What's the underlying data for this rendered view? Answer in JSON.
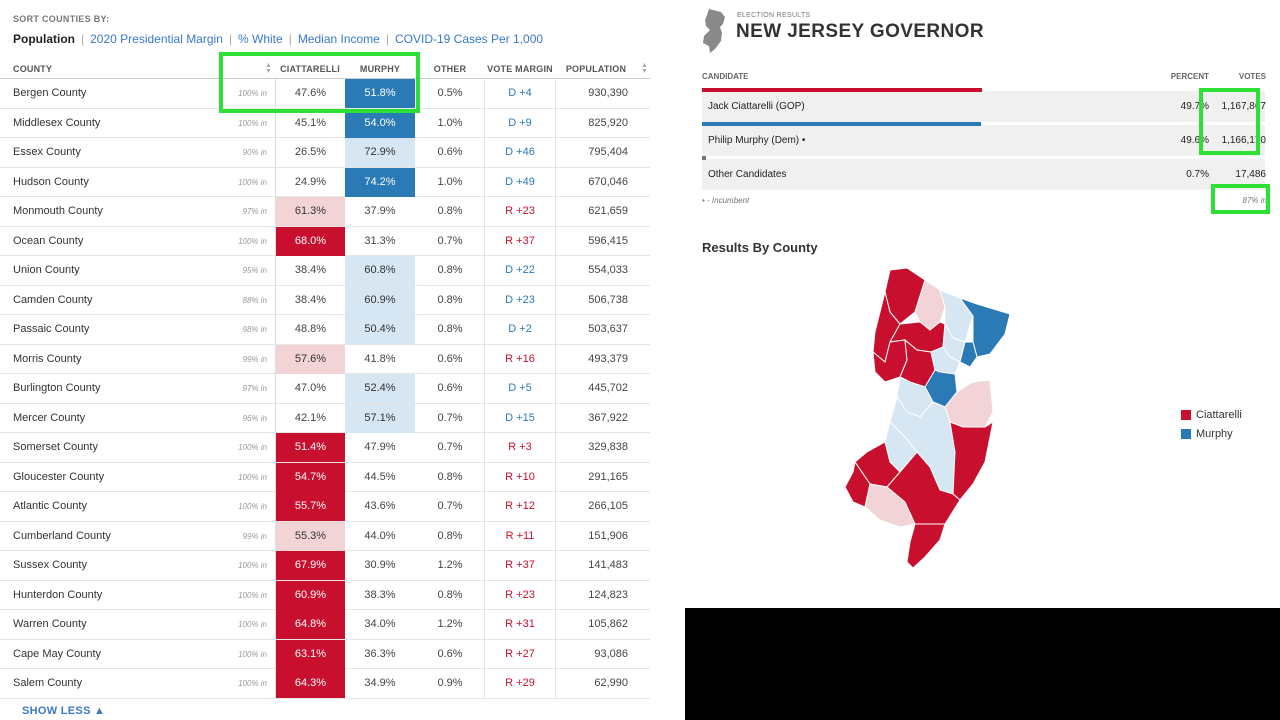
{
  "colors": {
    "rep_strong": "#c8102e",
    "rep_lean": "#f2d4d6",
    "dem_strong": "#2a7ab6",
    "dem_lean": "#d6e6f2",
    "dem_margin": "#2a7ab6",
    "rep_margin": "#c8102e",
    "highlight": "#2de036",
    "link": "#3a78c9"
  },
  "sort": {
    "label": "SORT COUNTIES BY:",
    "options": [
      "Population",
      "2020 Presidential Margin",
      "% White",
      "Median Income",
      "COVID-19 Cases Per 1,000"
    ],
    "active": "Population"
  },
  "table": {
    "headers": {
      "county": "COUNTY",
      "ciattarelli": "CIATTARELLI",
      "murphy": "MURPHY",
      "other": "OTHER",
      "margin": "VOTE MARGIN",
      "population": "POPULATION"
    },
    "rows": [
      {
        "county": "Bergen County",
        "in": "100% in",
        "ciat": "47.6%",
        "mur": "51.8%",
        "other": "0.5%",
        "margin": "D +4",
        "pop": "930,390",
        "ciat_shade": "none",
        "mur_shade": "strong"
      },
      {
        "county": "Middlesex County",
        "in": "100% in",
        "ciat": "45.1%",
        "mur": "54.0%",
        "other": "1.0%",
        "margin": "D +9",
        "pop": "825,920",
        "ciat_shade": "none",
        "mur_shade": "strong"
      },
      {
        "county": "Essex County",
        "in": "90% in",
        "ciat": "26.5%",
        "mur": "72.9%",
        "other": "0.6%",
        "margin": "D +46",
        "pop": "795,404",
        "ciat_shade": "none",
        "mur_shade": "lean"
      },
      {
        "county": "Hudson County",
        "in": "100% in",
        "ciat": "24.9%",
        "mur": "74.2%",
        "other": "1.0%",
        "margin": "D +49",
        "pop": "670,046",
        "ciat_shade": "none",
        "mur_shade": "strong"
      },
      {
        "county": "Monmouth County",
        "in": "97% in",
        "ciat": "61.3%",
        "mur": "37.9%",
        "other": "0.8%",
        "margin": "R +23",
        "pop": "621,659",
        "ciat_shade": "lean",
        "mur_shade": "none"
      },
      {
        "county": "Ocean County",
        "in": "100% in",
        "ciat": "68.0%",
        "mur": "31.3%",
        "other": "0.7%",
        "margin": "R +37",
        "pop": "596,415",
        "ciat_shade": "strong",
        "mur_shade": "none"
      },
      {
        "county": "Union County",
        "in": "95% in",
        "ciat": "38.4%",
        "mur": "60.8%",
        "other": "0.8%",
        "margin": "D +22",
        "pop": "554,033",
        "ciat_shade": "none",
        "mur_shade": "lean"
      },
      {
        "county": "Camden County",
        "in": "88% in",
        "ciat": "38.4%",
        "mur": "60.9%",
        "other": "0.8%",
        "margin": "D +23",
        "pop": "506,738",
        "ciat_shade": "none",
        "mur_shade": "lean"
      },
      {
        "county": "Passaic County",
        "in": "98% in",
        "ciat": "48.8%",
        "mur": "50.4%",
        "other": "0.8%",
        "margin": "D +2",
        "pop": "503,637",
        "ciat_shade": "none",
        "mur_shade": "lean"
      },
      {
        "county": "Morris County",
        "in": "99% in",
        "ciat": "57.6%",
        "mur": "41.8%",
        "other": "0.6%",
        "margin": "R +16",
        "pop": "493,379",
        "ciat_shade": "lean",
        "mur_shade": "none"
      },
      {
        "county": "Burlington County",
        "in": "97% in",
        "ciat": "47.0%",
        "mur": "52.4%",
        "other": "0.6%",
        "margin": "D +5",
        "pop": "445,702",
        "ciat_shade": "none",
        "mur_shade": "lean"
      },
      {
        "county": "Mercer County",
        "in": "96% in",
        "ciat": "42.1%",
        "mur": "57.1%",
        "other": "0.7%",
        "margin": "D +15",
        "pop": "367,922",
        "ciat_shade": "none",
        "mur_shade": "lean"
      },
      {
        "county": "Somerset County",
        "in": "100% in",
        "ciat": "51.4%",
        "mur": "47.9%",
        "other": "0.7%",
        "margin": "R +3",
        "pop": "329,838",
        "ciat_shade": "strong",
        "mur_shade": "none"
      },
      {
        "county": "Gloucester County",
        "in": "100% in",
        "ciat": "54.7%",
        "mur": "44.5%",
        "other": "0.8%",
        "margin": "R +10",
        "pop": "291,165",
        "ciat_shade": "strong",
        "mur_shade": "none"
      },
      {
        "county": "Atlantic County",
        "in": "100% in",
        "ciat": "55.7%",
        "mur": "43.6%",
        "other": "0.7%",
        "margin": "R +12",
        "pop": "266,105",
        "ciat_shade": "strong",
        "mur_shade": "none"
      },
      {
        "county": "Cumberland County",
        "in": "99% in",
        "ciat": "55.3%",
        "mur": "44.0%",
        "other": "0.8%",
        "margin": "R +11",
        "pop": "151,906",
        "ciat_shade": "lean",
        "mur_shade": "none"
      },
      {
        "county": "Sussex County",
        "in": "100% in",
        "ciat": "67.9%",
        "mur": "30.9%",
        "other": "1.2%",
        "margin": "R +37",
        "pop": "141,483",
        "ciat_shade": "strong",
        "mur_shade": "none"
      },
      {
        "county": "Hunterdon County",
        "in": "100% in",
        "ciat": "60.9%",
        "mur": "38.3%",
        "other": "0.8%",
        "margin": "R +23",
        "pop": "124,823",
        "ciat_shade": "strong",
        "mur_shade": "none"
      },
      {
        "county": "Warren County",
        "in": "100% in",
        "ciat": "64.8%",
        "mur": "34.0%",
        "other": "1.2%",
        "margin": "R +31",
        "pop": "105,862",
        "ciat_shade": "strong",
        "mur_shade": "none"
      },
      {
        "county": "Cape May County",
        "in": "100% in",
        "ciat": "63.1%",
        "mur": "36.3%",
        "other": "0.6%",
        "margin": "R +27",
        "pop": "93,086",
        "ciat_shade": "strong",
        "mur_shade": "none"
      },
      {
        "county": "Salem County",
        "in": "100% in",
        "ciat": "64.3%",
        "mur": "34.9%",
        "other": "0.9%",
        "margin": "R +29",
        "pop": "62,990",
        "ciat_shade": "strong",
        "mur_shade": "none"
      }
    ],
    "show_less": "SHOW LESS ▲"
  },
  "results": {
    "kicker": "ELECTION RESULTS",
    "title": "NEW JERSEY GOVERNOR",
    "headers": {
      "candidate": "CANDIDATE",
      "percent": "PERCENT",
      "votes": "VOTES"
    },
    "candidates": [
      {
        "name": "Jack Ciattarelli (GOP)",
        "percent": "49.7%",
        "votes": "1,167,867",
        "bar_fraction": 0.497,
        "bar_color": "#c8102e"
      },
      {
        "name": "Philip Murphy (Dem) •",
        "percent": "49.6%",
        "votes": "1,166,170",
        "bar_fraction": 0.496,
        "bar_color": "#2a7ab6"
      },
      {
        "name": "Other Candidates",
        "percent": "0.7%",
        "votes": "17,486",
        "bar_fraction": 0.007,
        "bar_color": "#777777"
      }
    ],
    "incumbent_note": "• - Incumbent",
    "pct_in": "87% in",
    "county_heading": "Results By County",
    "legend": [
      {
        "label": "Ciattarelli",
        "color": "#c8102e"
      },
      {
        "label": "Murphy",
        "color": "#2a7ab6"
      }
    ]
  }
}
